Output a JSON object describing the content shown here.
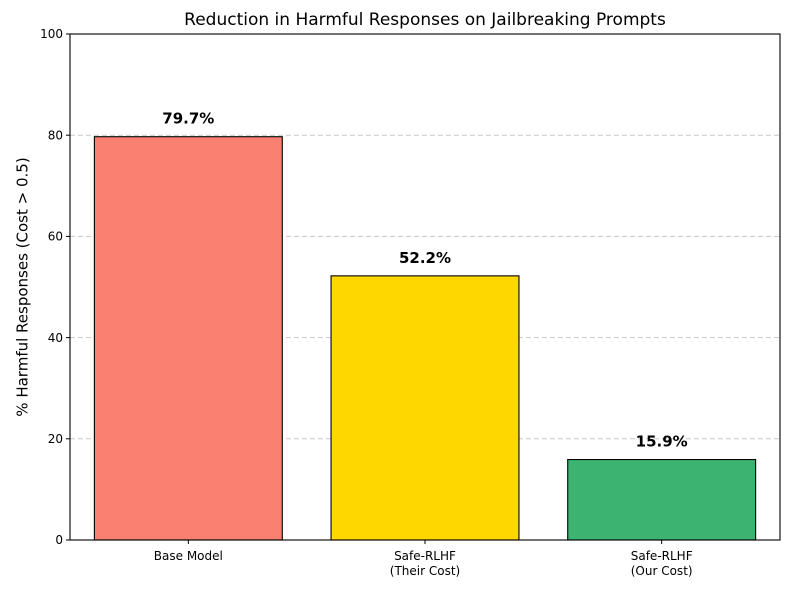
{
  "chart_data": {
    "type": "bar",
    "title": "Reduction in Harmful Responses on Jailbreaking Prompts",
    "xlabel": "",
    "ylabel": "% Harmful Responses (Cost > 0.5)",
    "ylim": [
      0,
      100
    ],
    "yticks": [
      "0",
      "20",
      "40",
      "60",
      "80",
      "100"
    ],
    "grid": "y-dashed",
    "categories": [
      [
        "Base Model"
      ],
      [
        "Safe-RLHF",
        "(Their Cost)"
      ],
      [
        "Safe-RLHF",
        "(Our Cost)"
      ]
    ],
    "values": [
      79.7,
      52.2,
      15.9
    ],
    "data_labels": [
      "79.7%",
      "52.2%",
      "15.9%"
    ],
    "colors": [
      "#fa8072",
      "#ffd700",
      "#3cb371"
    ]
  }
}
